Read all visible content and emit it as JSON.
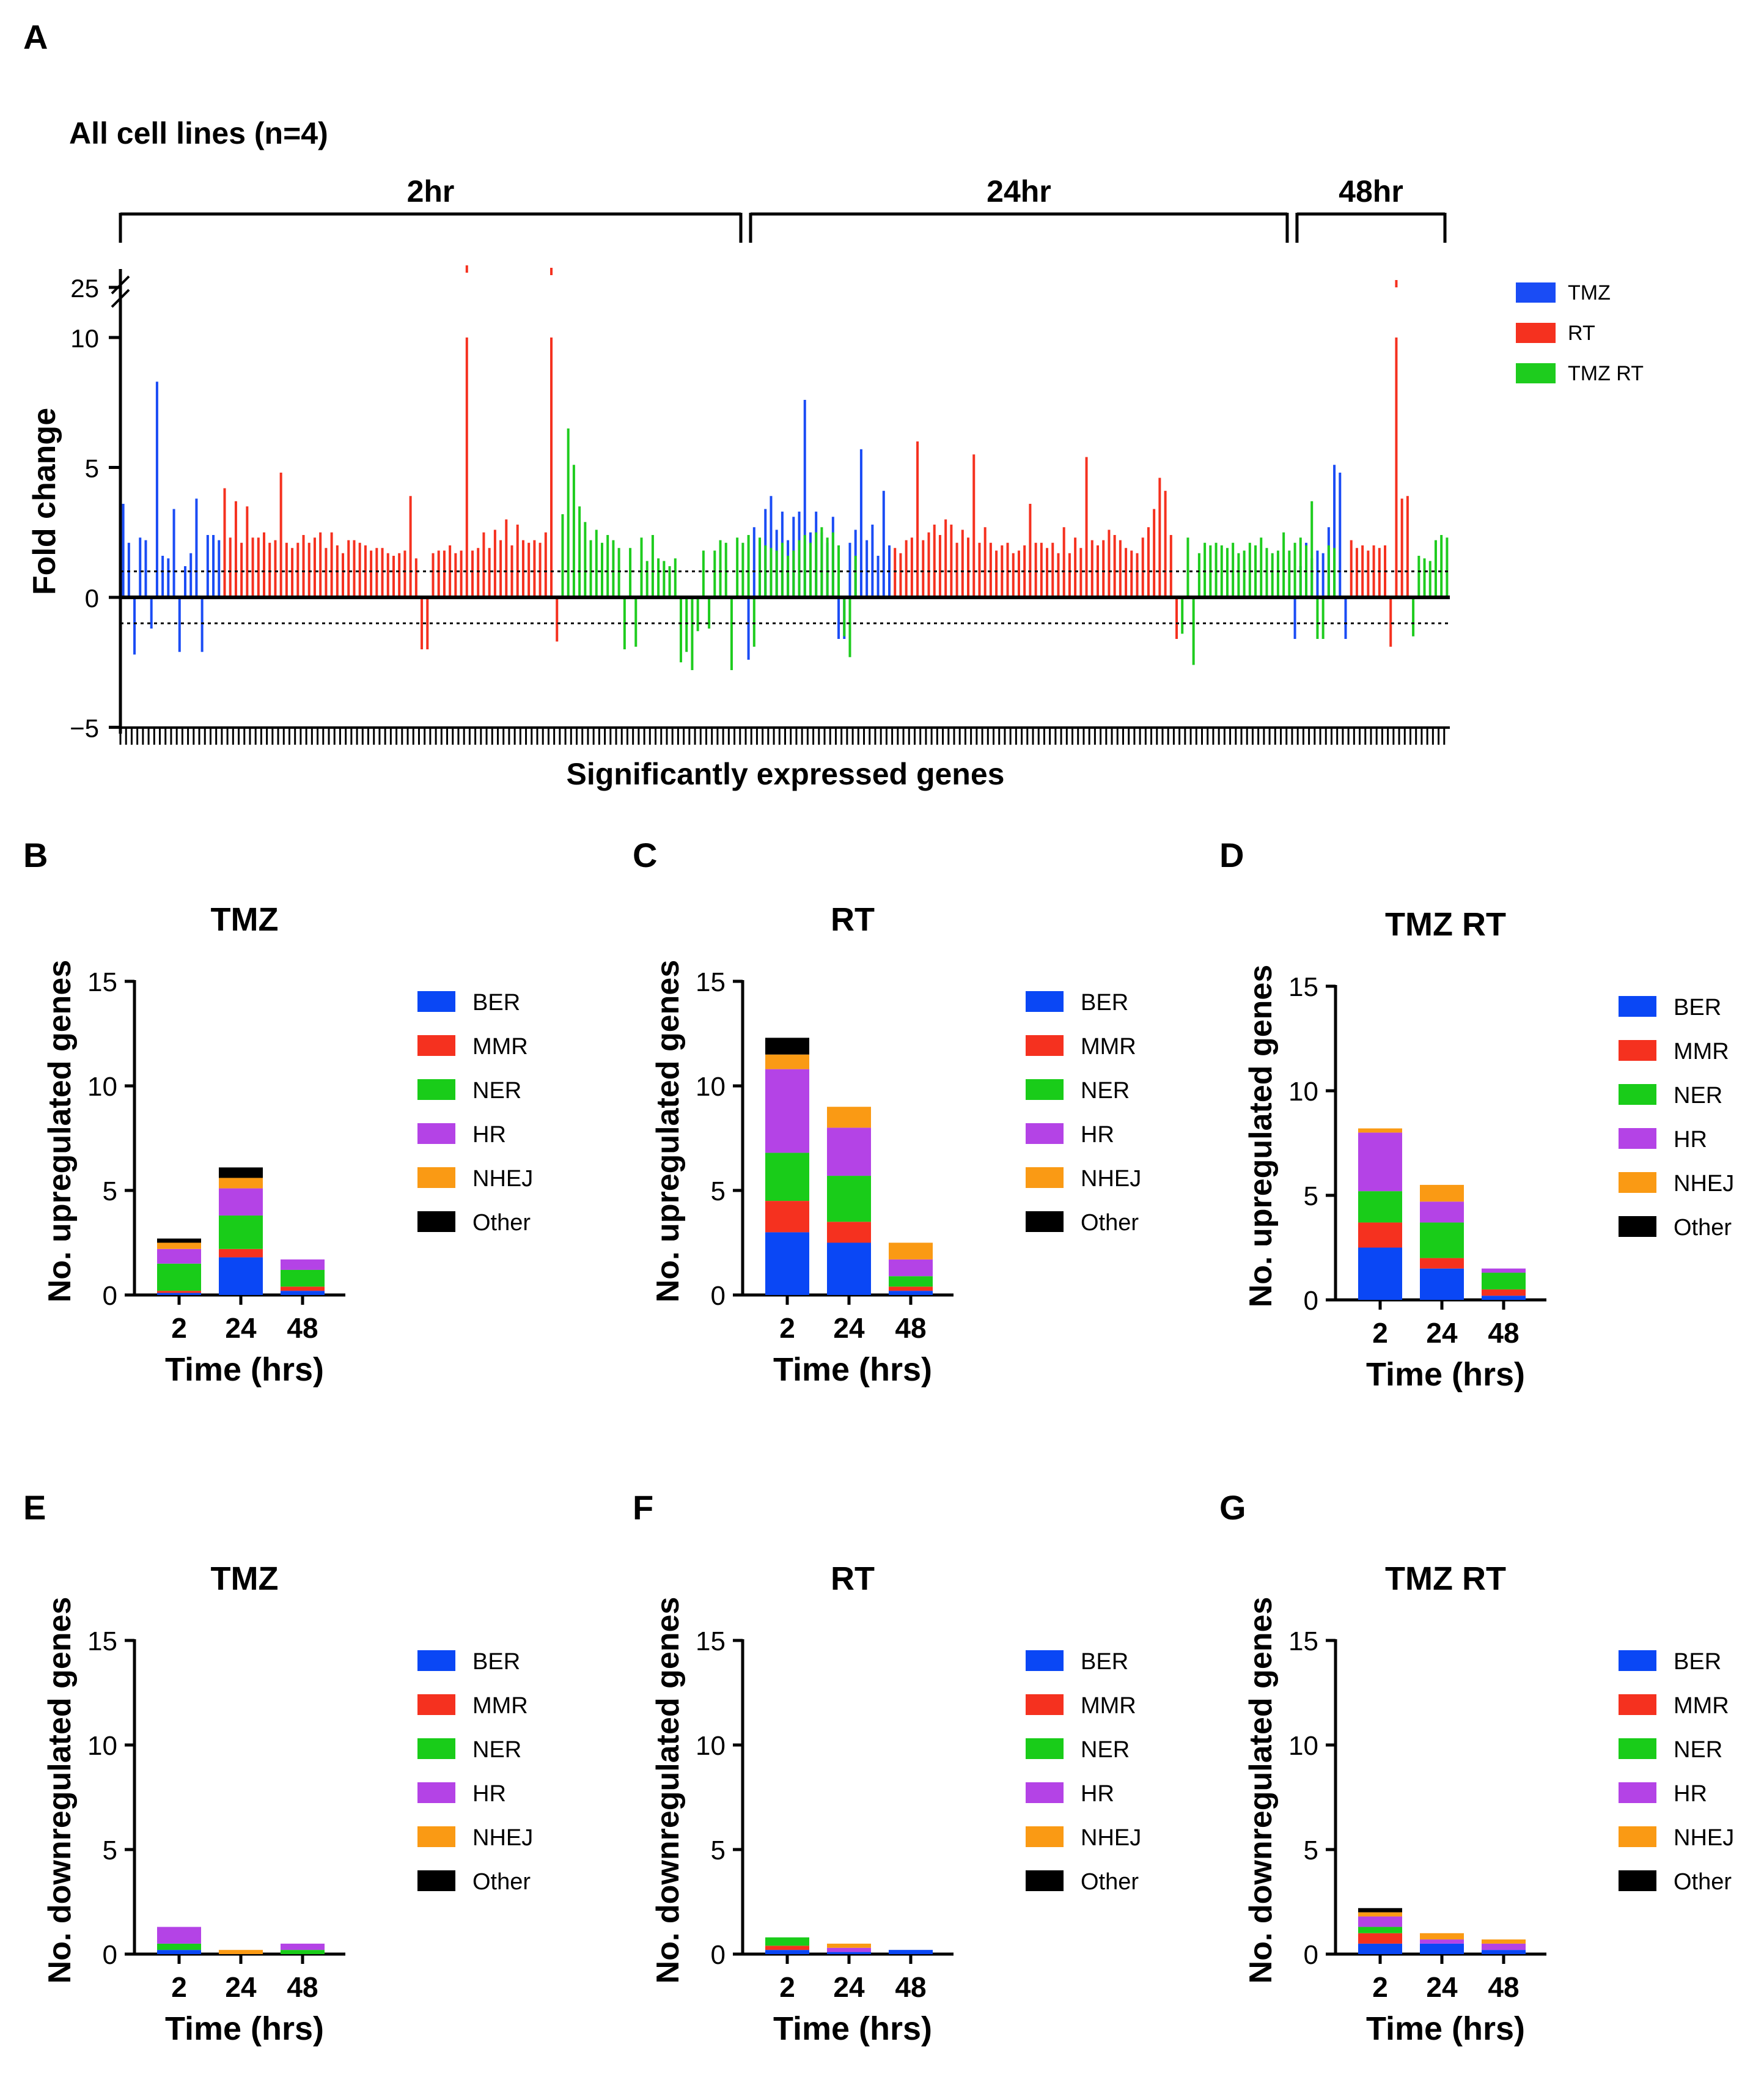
{
  "colors": {
    "TMZ": "#1a4cf5",
    "RT": "#f5311f",
    "TMZ RT": "#1ecc1e",
    "BER": "#0a47f5",
    "MMR": "#f5311f",
    "NER": "#19cc19",
    "HR": "#b443e6",
    "NHEJ": "#fa9a14",
    "Other": "#000000"
  },
  "chart_data": [
    {
      "type": "bar",
      "panel": "A",
      "title": "All cell lines (n=4)",
      "xlabel": "Significantly expressed genes",
      "ylabel": "Fold change",
      "yticks": [
        "25",
        "10",
        "5",
        "0",
        "−5"
      ],
      "ylim": [
        -5,
        25
      ],
      "axis_break": [
        10,
        25
      ],
      "reference_lines": [
        1,
        -1
      ],
      "time_groups": [
        {
          "label": "2hr",
          "gene_range": [
            0,
            111
          ]
        },
        {
          "label": "24hr",
          "gene_range": [
            111,
            208
          ]
        },
        {
          "label": "48hr",
          "gene_range": [
            208,
            236
          ]
        }
      ],
      "legend": [
        "TMZ",
        "RT",
        "TMZ RT"
      ],
      "legend_position": "top-right",
      "series": [
        {
          "name": "TMZ",
          "segments": [
            {
              "start": 0,
              "values": [
                3.6,
                2.1,
                -2.2,
                2.3,
                2.2,
                -1.2,
                8.3,
                1.6,
                1.5,
                3.4,
                -2.1,
                1.2,
                1.7,
                3.8,
                -2.1,
                2.4,
                2.4,
                2.2
              ]
            },
            {
              "start": 111,
              "values": [
                -2.4,
                2.7,
                2.2,
                3.4,
                3.9,
                2.6,
                3.3,
                2.2,
                3.1,
                3.3,
                7.6,
                2.5,
                3.3,
                2.5,
                2.1,
                3.1,
                -1.6,
                -1.6,
                2.1,
                2.6,
                5.7,
                2.2,
                2.8,
                1.6,
                4.1,
                2.0
              ]
            },
            {
              "start": 208,
              "values": [
                -1.6,
                1.2,
                2.1,
                1.5,
                1.8,
                1.7,
                2.7,
                5.1,
                4.8,
                -1.6
              ]
            }
          ]
        },
        {
          "name": "RT",
          "segments": [
            {
              "start": 18,
              "values": [
                4.2,
                2.3,
                3.7,
                2.1,
                3.5,
                2.3,
                2.3,
                2.5,
                2.1,
                2.2,
                4.8,
                2.1,
                1.9,
                2.1,
                2.4,
                2.1,
                2.3,
                2.5,
                1.9,
                2.5,
                2.0,
                1.7,
                2.2,
                2.2,
                2.1,
                2.0,
                1.8,
                1.9,
                1.9,
                1.7,
                1.6,
                1.7,
                1.8,
                3.9,
                1.5,
                -2.0,
                -2.0,
                1.7,
                1.8,
                1.8,
                2.0,
                1.7,
                1.8,
                24,
                1.8,
                1.9,
                2.5,
                1.9,
                2.6,
                2.2,
                3.0,
                2.0,
                2.8,
                2.2,
                2.1,
                2.2,
                2.1,
                2.5,
                22,
                -1.7
              ]
            },
            {
              "start": 137,
              "values": [
                1.9,
                1.7,
                2.2,
                2.3,
                6.0,
                2.2,
                2.5,
                2.8,
                2.4,
                3.0,
                2.8,
                2.1,
                2.6,
                2.3,
                5.5,
                2.1,
                2.7,
                2.1,
                1.8,
                2.0,
                2.1,
                1.7,
                1.8,
                2.0,
                3.6,
                2.1,
                2.1,
                1.9,
                2.1,
                1.7,
                2.7,
                1.7,
                2.3,
                1.9,
                5.4,
                2.2,
                2.0,
                2.2,
                2.6,
                2.4,
                2.2,
                1.9,
                1.8,
                1.7,
                2.3,
                2.7,
                3.4,
                4.6,
                4.1,
                2.4,
                -1.6
              ]
            },
            {
              "start": 218,
              "values": [
                2.2,
                1.9,
                2.0,
                1.8,
                2.0,
                1.9,
                2.0,
                -1.9,
                12,
                3.8,
                3.9
              ]
            }
          ]
        },
        {
          "name": "TMZ RT",
          "segments": [
            {
              "start": 78,
              "values": [
                3.2,
                6.5,
                5.1,
                3.5,
                2.9,
                2.2,
                2.6,
                2.1,
                2.4,
                2.2,
                1.9,
                -2.0,
                1.9,
                -1.9,
                2.3,
                1.4,
                2.4,
                1.5,
                1.4,
                1.2,
                1.5,
                -2.5,
                -2.1,
                -2.8,
                -1.3,
                1.8,
                -1.2,
                1.8,
                2.2,
                2.1,
                -2.8,
                2.3,
                2.1,
                2.4,
                -1.9,
                2.3,
                2.0,
                1.9,
                1.8,
                2.1,
                1.6,
                1.8,
                2.2,
                2.4,
                2.1,
                2.5,
                2.7,
                2.3,
                2.5,
                2.0,
                -1.5,
                -2.3,
                1.6
              ]
            },
            {
              "start": 188,
              "values": [
                -1.4,
                2.3,
                -2.6,
                1.7,
                2.1,
                2.0,
                2.1,
                2.0,
                1.9,
                2.1,
                1.7,
                1.8,
                2.1,
                2.0,
                2.3,
                1.9,
                1.7,
                1.8,
                2.5,
                1.8,
                2.1,
                2.3,
                2.0,
                3.7,
                -1.6,
                -1.6,
                2.0,
                1.9
              ]
            },
            {
              "start": 229,
              "values": [
                -1.5,
                1.6,
                1.5,
                1.4,
                2.2,
                2.4,
                2.3
              ]
            }
          ]
        }
      ]
    },
    {
      "type": "bar",
      "stacked": true,
      "panel": "B",
      "title": "TMZ",
      "xlabel": "Time (hrs)",
      "ylabel": "No. upregulated genes",
      "categories": [
        "2",
        "24",
        "48"
      ],
      "ylim": [
        0,
        15
      ],
      "yticks": [
        "0",
        "5",
        "10",
        "15"
      ],
      "series": [
        {
          "name": "BER",
          "values": [
            0.1,
            1.8,
            0.2
          ]
        },
        {
          "name": "MMR",
          "values": [
            0.1,
            0.4,
            0.2
          ]
        },
        {
          "name": "NER",
          "values": [
            1.3,
            1.6,
            0.8
          ]
        },
        {
          "name": "HR",
          "values": [
            0.7,
            1.3,
            0.5
          ]
        },
        {
          "name": "NHEJ",
          "values": [
            0.3,
            0.5,
            0
          ]
        },
        {
          "name": "Other",
          "values": [
            0.2,
            0.5,
            0
          ]
        }
      ]
    },
    {
      "type": "bar",
      "stacked": true,
      "panel": "C",
      "title": "RT",
      "xlabel": "Time (hrs)",
      "ylabel": "No. upregulated genes",
      "categories": [
        "2",
        "24",
        "48"
      ],
      "ylim": [
        0,
        15
      ],
      "yticks": [
        "0",
        "5",
        "10",
        "15"
      ],
      "series": [
        {
          "name": "BER",
          "values": [
            3.0,
            2.5,
            0.2
          ]
        },
        {
          "name": "MMR",
          "values": [
            1.5,
            1.0,
            0.2
          ]
        },
        {
          "name": "NER",
          "values": [
            2.3,
            2.2,
            0.5
          ]
        },
        {
          "name": "HR",
          "values": [
            4.0,
            2.3,
            0.8
          ]
        },
        {
          "name": "NHEJ",
          "values": [
            0.7,
            1.0,
            0.8
          ]
        },
        {
          "name": "Other",
          "values": [
            0.8,
            0,
            0
          ]
        }
      ]
    },
    {
      "type": "bar",
      "stacked": true,
      "panel": "D",
      "title": "TMZ RT",
      "xlabel": "Time (hrs)",
      "ylabel": "No. upregulated genes",
      "categories": [
        "2",
        "24",
        "48"
      ],
      "ylim": [
        0,
        15
      ],
      "yticks": [
        "0",
        "5",
        "10",
        "15"
      ],
      "series": [
        {
          "name": "BER",
          "values": [
            2.5,
            1.5,
            0.2
          ]
        },
        {
          "name": "MMR",
          "values": [
            1.2,
            0.5,
            0.3
          ]
        },
        {
          "name": "NER",
          "values": [
            1.5,
            1.7,
            0.8
          ]
        },
        {
          "name": "HR",
          "values": [
            2.8,
            1.0,
            0.2
          ]
        },
        {
          "name": "NHEJ",
          "values": [
            0.2,
            0.8,
            0
          ]
        },
        {
          "name": "Other",
          "values": [
            0,
            0,
            0
          ]
        }
      ]
    },
    {
      "type": "bar",
      "stacked": true,
      "panel": "E",
      "title": "TMZ",
      "xlabel": "Time (hrs)",
      "ylabel": "No. downregulated genes",
      "categories": [
        "2",
        "24",
        "48"
      ],
      "ylim": [
        0,
        15
      ],
      "yticks": [
        "0",
        "5",
        "10",
        "15"
      ],
      "series": [
        {
          "name": "BER",
          "values": [
            0.2,
            0,
            0
          ]
        },
        {
          "name": "MMR",
          "values": [
            0,
            0,
            0
          ]
        },
        {
          "name": "NER",
          "values": [
            0.3,
            0,
            0.2
          ]
        },
        {
          "name": "HR",
          "values": [
            0.8,
            0,
            0.3
          ]
        },
        {
          "name": "NHEJ",
          "values": [
            0,
            0.2,
            0
          ]
        },
        {
          "name": "Other",
          "values": [
            0,
            0,
            0
          ]
        }
      ]
    },
    {
      "type": "bar",
      "stacked": true,
      "panel": "F",
      "title": "RT",
      "xlabel": "Time (hrs)",
      "ylabel": "No. downregulated genes",
      "categories": [
        "2",
        "24",
        "48"
      ],
      "ylim": [
        0,
        15
      ],
      "yticks": [
        "0",
        "5",
        "10",
        "15"
      ],
      "series": [
        {
          "name": "BER",
          "values": [
            0.2,
            0.1,
            0.2
          ]
        },
        {
          "name": "MMR",
          "values": [
            0.2,
            0,
            0
          ]
        },
        {
          "name": "NER",
          "values": [
            0.4,
            0,
            0
          ]
        },
        {
          "name": "HR",
          "values": [
            0,
            0.2,
            0
          ]
        },
        {
          "name": "NHEJ",
          "values": [
            0,
            0.2,
            0
          ]
        },
        {
          "name": "Other",
          "values": [
            0,
            0,
            0
          ]
        }
      ]
    },
    {
      "type": "bar",
      "stacked": true,
      "panel": "G",
      "title": "TMZ RT",
      "xlabel": "Time (hrs)",
      "ylabel": "No. downregulated genes",
      "categories": [
        "2",
        "24",
        "48"
      ],
      "ylim": [
        0,
        15
      ],
      "yticks": [
        "0",
        "5",
        "10",
        "15"
      ],
      "series": [
        {
          "name": "BER",
          "values": [
            0.5,
            0.5,
            0.2
          ]
        },
        {
          "name": "MMR",
          "values": [
            0.5,
            0,
            0
          ]
        },
        {
          "name": "NER",
          "values": [
            0.3,
            0,
            0
          ]
        },
        {
          "name": "HR",
          "values": [
            0.5,
            0.2,
            0.3
          ]
        },
        {
          "name": "NHEJ",
          "values": [
            0.2,
            0.3,
            0.2
          ]
        },
        {
          "name": "Other",
          "values": [
            0.2,
            0,
            0
          ]
        }
      ]
    }
  ]
}
